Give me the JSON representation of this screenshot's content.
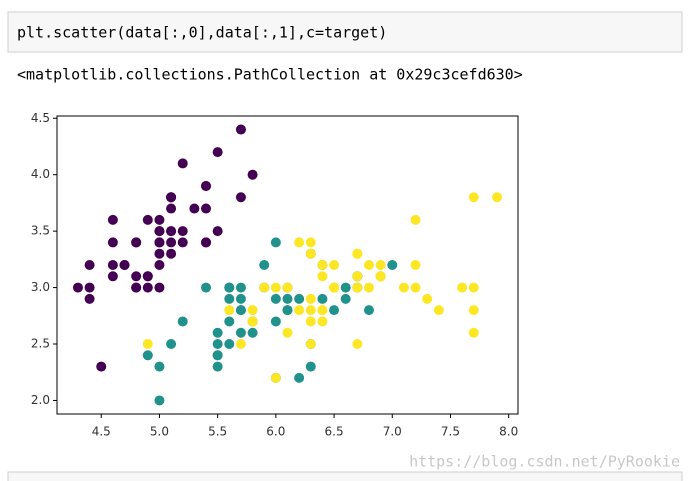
{
  "cell": {
    "code": "plt.scatter(data[:,0],data[:,1],c=target)",
    "output": "<matplotlib.collections.PathCollection at 0x29c3cefd630>"
  },
  "watermark": "https://blog.csdn.net/PyRookie",
  "chart_data": {
    "type": "scatter",
    "xlim": [
      4.12,
      8.08
    ],
    "ylim": [
      1.88,
      4.52
    ],
    "xticks": [
      4.5,
      {
        "value": 5,
        "label": "5.0"
      },
      5.5,
      {
        "value": 6,
        "label": "6.0"
      },
      6.5,
      {
        "value": 7,
        "label": "7.0"
      },
      7.5,
      {
        "value": 8,
        "label": "8.0"
      }
    ],
    "yticks": [
      {
        "value": 2,
        "label": "2.0"
      },
      2.5,
      {
        "value": 3,
        "label": "3.0"
      },
      3.5,
      {
        "value": 4,
        "label": "4.0"
      },
      4.5
    ],
    "series": [
      {
        "color": "#440154",
        "x": [
          5.1,
          4.9,
          4.7,
          4.6,
          5.0,
          5.4,
          4.6,
          5.0,
          4.4,
          4.9,
          5.4,
          4.8,
          4.8,
          4.3,
          5.8,
          5.7,
          5.4,
          5.1,
          5.7,
          5.1,
          5.4,
          5.1,
          4.6,
          5.1,
          4.8,
          5.0,
          5.0,
          5.2,
          5.2,
          4.7,
          4.8,
          5.4,
          5.2,
          5.5,
          4.9,
          5.0,
          5.5,
          4.9,
          4.4,
          5.1,
          5.0,
          4.5,
          4.4,
          5.0,
          5.1,
          4.8,
          5.1,
          4.6,
          5.3,
          5.0
        ],
        "y": [
          3.5,
          3.0,
          3.2,
          3.1,
          3.6,
          3.9,
          3.4,
          3.4,
          2.9,
          3.1,
          3.7,
          3.4,
          3.0,
          3.0,
          4.0,
          4.4,
          3.9,
          3.5,
          3.8,
          3.8,
          3.4,
          3.7,
          3.6,
          3.3,
          3.4,
          3.0,
          3.4,
          3.5,
          3.4,
          3.2,
          3.1,
          3.4,
          4.1,
          4.2,
          3.1,
          3.2,
          3.5,
          3.6,
          3.0,
          3.4,
          3.5,
          2.3,
          3.2,
          3.5,
          3.8,
          3.0,
          3.8,
          3.2,
          3.7,
          3.3
        ]
      },
      {
        "color": "#21918c",
        "x": [
          7.0,
          6.4,
          6.9,
          5.5,
          6.5,
          5.7,
          6.3,
          4.9,
          6.6,
          5.2,
          5.0,
          5.9,
          6.0,
          6.1,
          5.6,
          6.7,
          5.6,
          5.8,
          6.2,
          5.6,
          5.9,
          6.1,
          6.3,
          6.1,
          6.4,
          6.6,
          6.8,
          6.7,
          6.0,
          5.7,
          5.5,
          5.5,
          5.8,
          6.0,
          5.4,
          6.0,
          6.7,
          6.3,
          5.6,
          5.5,
          5.5,
          6.1,
          5.8,
          5.0,
          5.6,
          5.7,
          5.7,
          6.2,
          5.1,
          5.7
        ],
        "y": [
          3.2,
          3.2,
          3.1,
          2.3,
          2.8,
          2.8,
          3.3,
          2.4,
          2.9,
          2.7,
          2.0,
          3.0,
          2.2,
          2.9,
          2.9,
          3.1,
          3.0,
          2.7,
          2.2,
          2.5,
          3.2,
          2.8,
          2.5,
          2.8,
          2.9,
          3.0,
          2.8,
          3.0,
          2.9,
          2.6,
          2.4,
          2.4,
          2.7,
          2.7,
          3.0,
          3.4,
          3.1,
          2.3,
          3.0,
          2.5,
          2.6,
          3.0,
          2.6,
          2.3,
          2.7,
          3.0,
          2.9,
          2.9,
          2.5,
          2.8
        ]
      },
      {
        "color": "#fde725",
        "x": [
          6.3,
          5.8,
          7.1,
          6.3,
          6.5,
          7.6,
          4.9,
          7.3,
          6.7,
          7.2,
          6.5,
          6.4,
          6.8,
          5.7,
          5.8,
          6.4,
          6.5,
          7.7,
          7.7,
          6.0,
          6.9,
          5.6,
          7.7,
          6.3,
          6.7,
          7.2,
          6.2,
          6.1,
          6.4,
          7.2,
          7.4,
          7.9,
          6.4,
          6.3,
          6.1,
          7.7,
          6.3,
          6.4,
          6.0,
          6.9,
          6.7,
          6.9,
          5.8,
          6.8,
          6.7,
          6.7,
          6.3,
          6.5,
          6.2,
          5.9
        ],
        "y": [
          3.3,
          2.7,
          3.0,
          2.9,
          3.0,
          3.0,
          2.5,
          2.9,
          2.5,
          3.6,
          3.2,
          2.7,
          3.0,
          2.5,
          2.8,
          3.2,
          3.0,
          3.8,
          2.6,
          2.2,
          3.2,
          2.8,
          2.8,
          2.7,
          3.3,
          3.2,
          2.8,
          3.0,
          2.8,
          3.0,
          2.8,
          3.8,
          2.8,
          2.8,
          2.6,
          3.0,
          3.4,
          3.1,
          3.0,
          3.1,
          3.1,
          3.1,
          2.7,
          3.2,
          3.3,
          3.0,
          2.5,
          3.0,
          3.4,
          3.0
        ]
      }
    ]
  }
}
